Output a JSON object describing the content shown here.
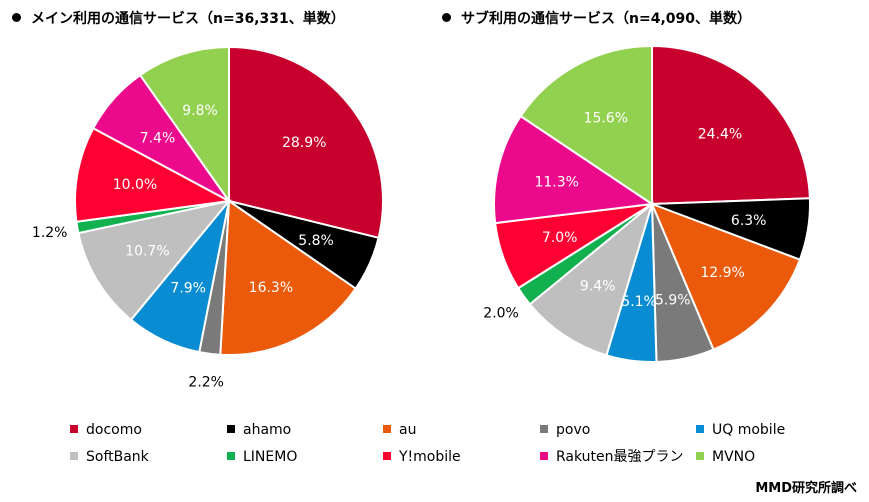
{
  "chart_data": [
    {
      "type": "pie",
      "title": "メイン利用の通信サービス（n=36,331、単数）",
      "categories": [
        "docomo",
        "ahamo",
        "au",
        "povo",
        "UQ mobile",
        "SoftBank",
        "LINEMO",
        "Y!mobile",
        "Rakuten最強プラン",
        "MVNO"
      ],
      "values": [
        28.9,
        5.8,
        16.3,
        2.2,
        7.9,
        10.7,
        1.2,
        10.0,
        7.4,
        9.8
      ],
      "labels": [
        "28.9%",
        "5.8%",
        "16.3%",
        "2.2%",
        "7.9%",
        "10.7%",
        "1.2%",
        "10.0%",
        "7.4%",
        "9.8%"
      ]
    },
    {
      "type": "pie",
      "title": "サブ利用の通信サービス（n=4,090、単数）",
      "categories": [
        "docomo",
        "ahamo",
        "au",
        "povo",
        "UQ mobile",
        "SoftBank",
        "LINEMO",
        "Y!mobile",
        "Rakuten最強プラン",
        "MVNO"
      ],
      "values": [
        24.4,
        6.3,
        12.9,
        5.9,
        5.1,
        9.4,
        2.0,
        7.0,
        11.3,
        15.6
      ],
      "labels": [
        "24.4%",
        "6.3%",
        "12.9%",
        "5.9%",
        "5.1%",
        "9.4%",
        "2.0%",
        "7.0%",
        "11.3%",
        "15.6%"
      ]
    }
  ],
  "legend": [
    {
      "label": "docomo",
      "color": "#C8002D"
    },
    {
      "label": "ahamo",
      "color": "#000000"
    },
    {
      "label": "au",
      "color": "#EB5A0A"
    },
    {
      "label": "povo",
      "color": "#7A7A7A"
    },
    {
      "label": "UQ mobile",
      "color": "#0A8CD2"
    },
    {
      "label": "SoftBank",
      "color": "#BFBFBF"
    },
    {
      "label": "LINEMO",
      "color": "#11B150"
    },
    {
      "label": "Y!mobile",
      "color": "#FF0033"
    },
    {
      "label": "Rakuten最強プラン",
      "color": "#EB0A8C"
    },
    {
      "label": "MVNO",
      "color": "#92D050"
    }
  ],
  "credit": "MMD研究所調べ"
}
